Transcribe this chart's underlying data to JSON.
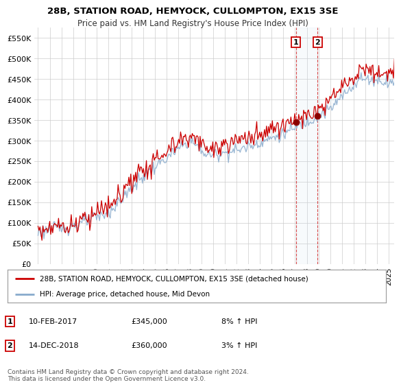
{
  "title": "28B, STATION ROAD, HEMYOCK, CULLOMPTON, EX15 3SE",
  "subtitle": "Price paid vs. HM Land Registry's House Price Index (HPI)",
  "ylabel_ticks": [
    "£0",
    "£50K",
    "£100K",
    "£150K",
    "£200K",
    "£250K",
    "£300K",
    "£350K",
    "£400K",
    "£450K",
    "£500K",
    "£550K"
  ],
  "ytick_values": [
    0,
    50000,
    100000,
    150000,
    200000,
    250000,
    300000,
    350000,
    400000,
    450000,
    500000,
    550000
  ],
  "ylim": [
    0,
    575000
  ],
  "xlim_left": 1994.7,
  "xlim_right": 2025.5,
  "sale1_t": 2017.08,
  "sale1_price": 345000,
  "sale2_t": 2018.92,
  "sale2_price": 360000,
  "legend_line1": "28B, STATION ROAD, HEMYOCK, CULLOMPTON, EX15 3SE (detached house)",
  "legend_line2": "HPI: Average price, detached house, Mid Devon",
  "footer": "Contains HM Land Registry data © Crown copyright and database right 2024.\nThis data is licensed under the Open Government Licence v3.0.",
  "line_color_red": "#cc0000",
  "line_color_blue": "#88aacc",
  "shade_color": "#cce0f0",
  "vline_color": "#cc0000",
  "background_color": "#ffffff",
  "grid_color": "#cccccc",
  "title_fontsize": 9.5,
  "subtitle_fontsize": 8.5,
  "tick_fontsize": 8,
  "legend_fontsize": 7.5,
  "ann_fontsize": 8,
  "footer_fontsize": 6.5
}
